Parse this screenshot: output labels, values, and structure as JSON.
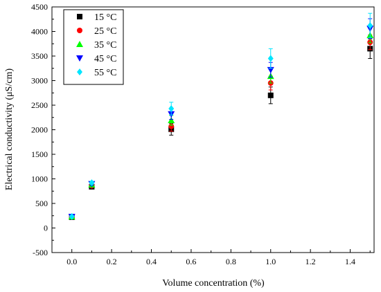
{
  "chart_data": {
    "type": "scatter",
    "xlabel": "Volume concentration (%)",
    "ylabel": "Electrical conductivity (μS/cm)",
    "xlim": [
      -0.1,
      1.52
    ],
    "ylim": [
      -500,
      4500
    ],
    "x_ticks": [
      "0.0",
      "0.2",
      "0.4",
      "0.6",
      "0.8",
      "1.0",
      "1.2",
      "1.4"
    ],
    "x_tick_values": [
      0,
      0.2,
      0.4,
      0.6,
      0.8,
      1.0,
      1.2,
      1.4
    ],
    "y_ticks": [
      "-500",
      "0",
      "500",
      "1000",
      "1500",
      "2000",
      "2500",
      "3000",
      "3500",
      "4000",
      "4500"
    ],
    "y_tick_values": [
      -500,
      0,
      500,
      1000,
      1500,
      2000,
      2500,
      3000,
      3500,
      4000,
      4500
    ],
    "grid": false,
    "legend_position": "top-left",
    "x": [
      0.0,
      0.1,
      0.5,
      1.0,
      1.5
    ],
    "series": [
      {
        "name": "15 °C",
        "marker": "square",
        "color": "#000000",
        "values": [
          220,
          840,
          2010,
          2700,
          3650
        ],
        "errors": [
          20,
          30,
          120,
          170,
          200
        ]
      },
      {
        "name": "25 °C",
        "marker": "circle",
        "color": "#ff0000",
        "values": [
          225,
          860,
          2070,
          2950,
          3780
        ],
        "errors": [
          20,
          30,
          100,
          140,
          150
        ]
      },
      {
        "name": "35 °C",
        "marker": "triangle-up",
        "color": "#00ff00",
        "values": [
          230,
          880,
          2190,
          3090,
          3920
        ],
        "errors": [
          20,
          30,
          100,
          140,
          150
        ]
      },
      {
        "name": "45 °C",
        "marker": "triangle-down",
        "color": "#0000ff",
        "values": [
          232,
          900,
          2320,
          3220,
          4060
        ],
        "errors": [
          20,
          30,
          110,
          150,
          200
        ]
      },
      {
        "name": "55 °C",
        "marker": "diamond",
        "color": "#00e5ff",
        "values": [
          235,
          920,
          2430,
          3450,
          4120
        ],
        "errors": [
          20,
          30,
          130,
          200,
          250
        ]
      }
    ]
  }
}
